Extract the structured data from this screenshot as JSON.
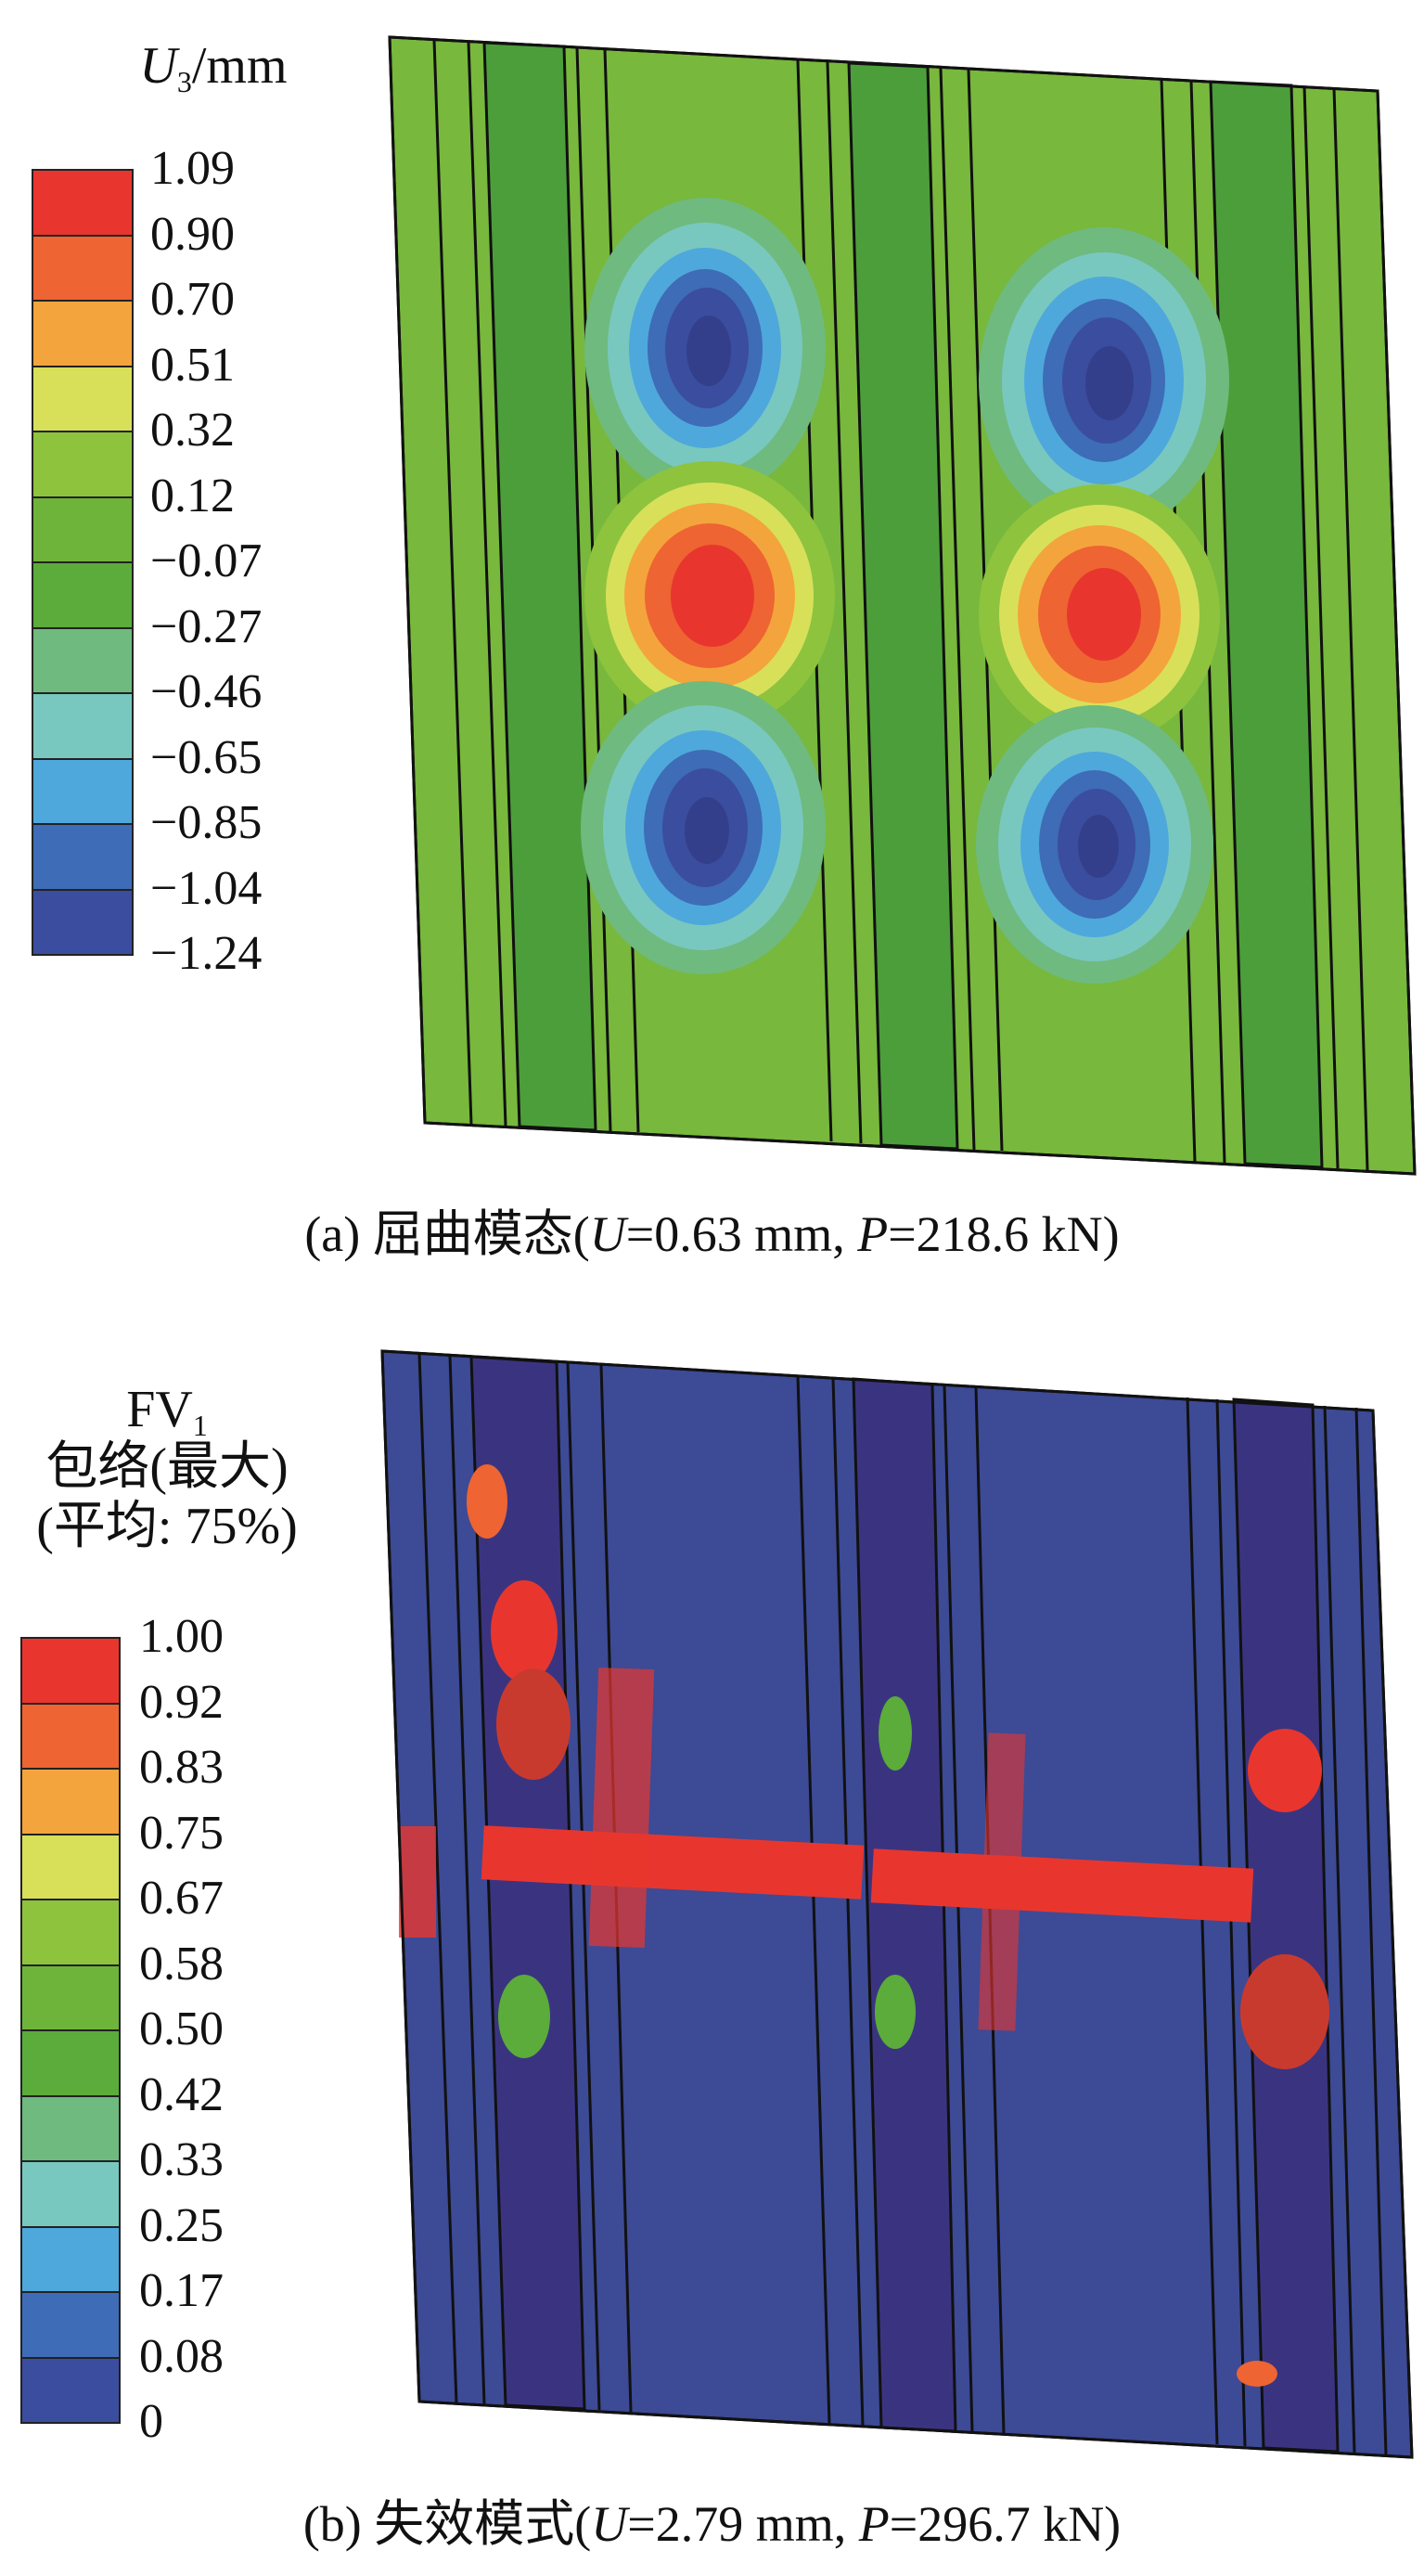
{
  "panel_a": {
    "legend": {
      "title_main": "U",
      "title_sub": "3",
      "title_unit": "/mm",
      "ticks": [
        "1.09",
        "0.90",
        "0.70",
        "0.51",
        "0.32",
        "0.12",
        "−0.07",
        "−0.27",
        "−0.46",
        "−0.65",
        "−0.85",
        "−1.04",
        "−1.24"
      ],
      "colors": [
        "#e8362e",
        "#ee6432",
        "#f4a43c",
        "#d8e05a",
        "#8ec33e",
        "#6fb43a",
        "#5bac3a",
        "#6fba7e",
        "#78c8c0",
        "#4ea8dc",
        "#3e6cb6",
        "#3b4d9e"
      ]
    },
    "caption": {
      "prefix": "(a) 屈曲模态(",
      "u_var": "U",
      "u_val": "=0.63 mm, ",
      "p_var": "P",
      "p_val": "=218.6 kN)"
    }
  },
  "panel_b": {
    "legend": {
      "title_line1_main": "FV",
      "title_line1_sub": "1",
      "title_line2": "包络(最大)",
      "title_line3": "(平均: 75%)",
      "ticks": [
        "1.00",
        "0.92",
        "0.83",
        "0.75",
        "0.67",
        "0.58",
        "0.50",
        "0.42",
        "0.33",
        "0.25",
        "0.17",
        "0.08",
        "0"
      ],
      "colors": [
        "#e8362e",
        "#ee6432",
        "#f4a43c",
        "#d8e05a",
        "#8ec33e",
        "#6fb43a",
        "#5bac3a",
        "#6fba7e",
        "#78c8c0",
        "#4ea8dc",
        "#3e6cb6",
        "#3b4d9e"
      ]
    },
    "caption": {
      "prefix": "(b) 失效模式(",
      "u_var": "U",
      "u_val": "=2.79 mm, ",
      "p_var": "P",
      "p_val": "=296.7 kN)"
    }
  },
  "colors": {
    "panel_green": "#78b83c",
    "stringer_green": "#4c9e3a",
    "panel_navy": "#3d4a96",
    "stringer_navy": "#3a3480",
    "damage_red": "#e8362e"
  }
}
